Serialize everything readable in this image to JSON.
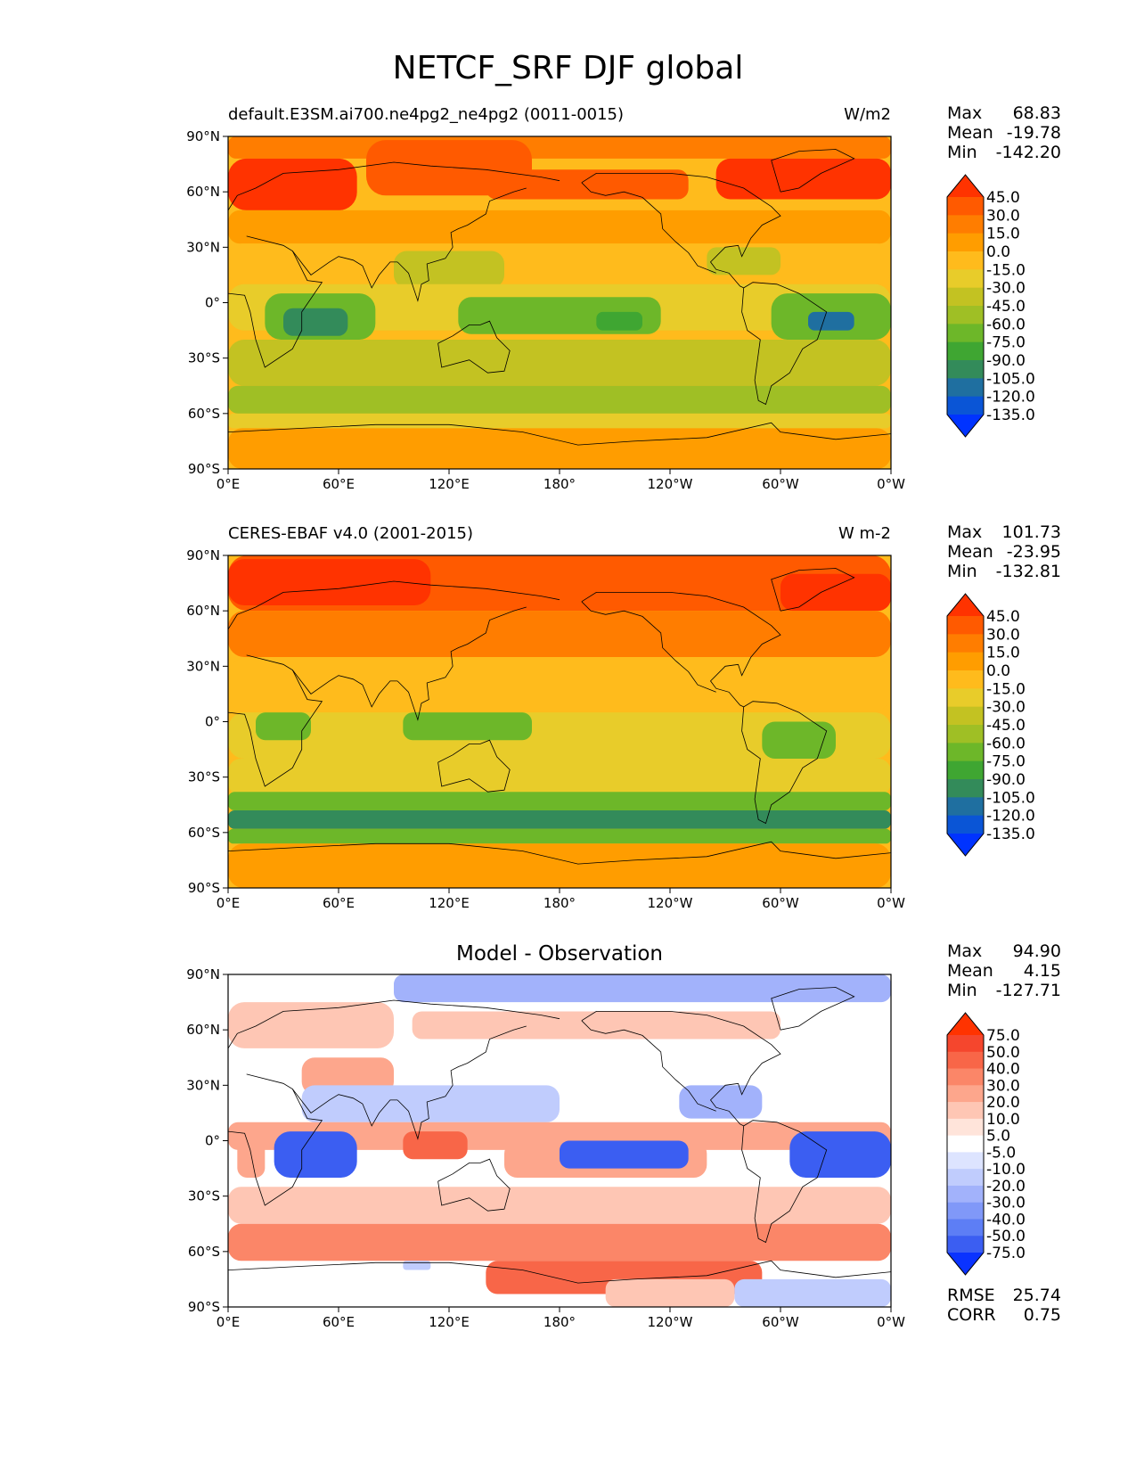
{
  "title": "NETCF_SRF DJF global",
  "chart_data": [
    {
      "type": "heatmap",
      "title_left": "default.E3SM.ai700.ne4pg2_ne4pg2 (0011-0015)",
      "title_right": "W/m2",
      "stats": {
        "max_label": "Max",
        "max": "68.83",
        "mean_label": "Mean",
        "mean": "-19.78",
        "min_label": "Min",
        "min": "-142.20"
      },
      "x_ticks": [
        "0°E",
        "60°E",
        "120°E",
        "180°",
        "120°W",
        "60°W",
        "0°W"
      ],
      "y_ticks": [
        "90°N",
        "60°N",
        "30°N",
        "0°",
        "30°S",
        "60°S",
        "90°S"
      ],
      "x_range": [
        0,
        360
      ],
      "y_range": [
        -90,
        90
      ],
      "colorbar_labels": [
        "45.0",
        "30.0",
        "15.0",
        "0.0",
        "-15.0",
        "-30.0",
        "-45.0",
        "-60.0",
        "-75.0",
        "-90.0",
        "-105.0",
        "-120.0",
        "-135.0"
      ],
      "colorbar_colors": [
        "#ff3300",
        "#ff5a00",
        "#ff7d00",
        "#ff9d00",
        "#ffbb1c",
        "#e8cc2a",
        "#c3c222",
        "#9fbf25",
        "#6db729",
        "#3fa632",
        "#338b5a",
        "#1f6fa0",
        "#0a55d6",
        "#0033ff"
      ],
      "regions": [
        {
          "lon": 0,
          "lat": 90,
          "w": 360,
          "h": 12,
          "v": 20
        },
        {
          "lon": 0,
          "lat": 78,
          "w": 70,
          "h": 28,
          "v": 48
        },
        {
          "lon": 75,
          "lat": 88,
          "w": 90,
          "h": 30,
          "v": 30
        },
        {
          "lon": 140,
          "lat": 72,
          "w": 110,
          "h": 16,
          "v": 42
        },
        {
          "lon": 265,
          "lat": 78,
          "w": 95,
          "h": 22,
          "v": 45
        },
        {
          "lon": 0,
          "lat": 50,
          "w": 360,
          "h": 18,
          "v": 10
        },
        {
          "lon": 0,
          "lat": 32,
          "w": 360,
          "h": 22,
          "v": -12
        },
        {
          "lon": 90,
          "lat": 28,
          "w": 60,
          "h": 20,
          "v": -35
        },
        {
          "lon": 260,
          "lat": 30,
          "w": 40,
          "h": 15,
          "v": -38
        },
        {
          "lon": 0,
          "lat": 10,
          "w": 360,
          "h": 25,
          "v": -28
        },
        {
          "lon": 20,
          "lat": 5,
          "w": 60,
          "h": 25,
          "v": -70
        },
        {
          "lon": 30,
          "lat": -3,
          "w": 35,
          "h": 15,
          "v": -95
        },
        {
          "lon": 125,
          "lat": 3,
          "w": 110,
          "h": 20,
          "v": -65
        },
        {
          "lon": 200,
          "lat": -5,
          "w": 25,
          "h": 10,
          "v": -88
        },
        {
          "lon": 295,
          "lat": 5,
          "w": 65,
          "h": 25,
          "v": -75
        },
        {
          "lon": 315,
          "lat": -5,
          "w": 25,
          "h": 10,
          "v": -115
        },
        {
          "lon": 0,
          "lat": -20,
          "w": 360,
          "h": 25,
          "v": -35
        },
        {
          "lon": 0,
          "lat": -45,
          "w": 360,
          "h": 15,
          "v": -50
        },
        {
          "lon": 0,
          "lat": -60,
          "w": 360,
          "h": 8,
          "v": -20
        },
        {
          "lon": 0,
          "lat": -68,
          "w": 360,
          "h": 22,
          "v": 5
        }
      ]
    },
    {
      "type": "heatmap",
      "title_left": "CERES-EBAF v4.0 (2001-2015)",
      "title_right": "W m-2",
      "stats": {
        "max_label": "Max",
        "max": "101.73",
        "mean_label": "Mean",
        "mean": "-23.95",
        "min_label": "Min",
        "min": "-132.81"
      },
      "x_ticks": [
        "0°E",
        "60°E",
        "120°E",
        "180°",
        "120°W",
        "60°W",
        "0°W"
      ],
      "y_ticks": [
        "90°N",
        "60°N",
        "30°N",
        "0°",
        "30°S",
        "60°S",
        "90°S"
      ],
      "x_range": [
        0,
        360
      ],
      "y_range": [
        -90,
        90
      ],
      "colorbar_labels": [
        "45.0",
        "30.0",
        "15.0",
        "0.0",
        "-15.0",
        "-30.0",
        "-45.0",
        "-60.0",
        "-75.0",
        "-90.0",
        "-105.0",
        "-120.0",
        "-135.0"
      ],
      "colorbar_colors": [
        "#ff3300",
        "#ff5a00",
        "#ff7d00",
        "#ff9d00",
        "#ffbb1c",
        "#e8cc2a",
        "#c3c222",
        "#9fbf25",
        "#6db729",
        "#3fa632",
        "#338b5a",
        "#1f6fa0",
        "#0a55d6",
        "#0033ff"
      ],
      "regions": [
        {
          "lon": 0,
          "lat": 90,
          "w": 360,
          "h": 30,
          "v": 30
        },
        {
          "lon": 0,
          "lat": 88,
          "w": 110,
          "h": 25,
          "v": 48
        },
        {
          "lon": 300,
          "lat": 80,
          "w": 60,
          "h": 20,
          "v": 48
        },
        {
          "lon": 0,
          "lat": 60,
          "w": 360,
          "h": 25,
          "v": 18
        },
        {
          "lon": 0,
          "lat": 35,
          "w": 360,
          "h": 30,
          "v": -5
        },
        {
          "lon": 0,
          "lat": 5,
          "w": 360,
          "h": 25,
          "v": -30
        },
        {
          "lon": 15,
          "lat": 5,
          "w": 30,
          "h": 15,
          "v": -65
        },
        {
          "lon": 95,
          "lat": 5,
          "w": 70,
          "h": 15,
          "v": -62
        },
        {
          "lon": 290,
          "lat": 0,
          "w": 40,
          "h": 20,
          "v": -70
        },
        {
          "lon": 0,
          "lat": -20,
          "w": 360,
          "h": 20,
          "v": -30
        },
        {
          "lon": 0,
          "lat": -38,
          "w": 360,
          "h": 10,
          "v": -72
        },
        {
          "lon": 0,
          "lat": -48,
          "w": 360,
          "h": 10,
          "v": -92
        },
        {
          "lon": 0,
          "lat": -58,
          "w": 360,
          "h": 8,
          "v": -65
        },
        {
          "lon": 0,
          "lat": -66,
          "w": 360,
          "h": 24,
          "v": 8
        }
      ]
    },
    {
      "type": "heatmap",
      "title_center": "Model - Observation",
      "stats": {
        "max_label": "Max",
        "max": "94.90",
        "mean_label": "Mean",
        "mean": "4.15",
        "min_label": "Min",
        "min": "-127.71"
      },
      "footer": {
        "rmse_label": "RMSE",
        "rmse": "25.74",
        "corr_label": "CORR",
        "corr": "0.75"
      },
      "x_ticks": [
        "0°E",
        "60°E",
        "120°E",
        "180°",
        "120°W",
        "60°W",
        "0°W"
      ],
      "y_ticks": [
        "90°N",
        "60°N",
        "30°N",
        "0°",
        "30°S",
        "60°S",
        "90°S"
      ],
      "x_range": [
        0,
        360
      ],
      "y_range": [
        -90,
        90
      ],
      "colorbar_labels": [
        "75.0",
        "50.0",
        "40.0",
        "30.0",
        "20.0",
        "10.0",
        "5.0",
        "-5.0",
        "-10.0",
        "-20.0",
        "-30.0",
        "-40.0",
        "-50.0",
        "-75.0"
      ],
      "colorbar_colors": [
        "#ff3300",
        "#f5462d",
        "#f86648",
        "#fb8668",
        "#fda68c",
        "#fec6b4",
        "#ffe4da",
        "#ffffff",
        "#dde4ff",
        "#c0ccfd",
        "#a2b2fb",
        "#8098f8",
        "#5d7ef5",
        "#3b5ef2",
        "#0a33ff"
      ],
      "regions": [
        {
          "lon": 90,
          "lat": 90,
          "w": 270,
          "h": 15,
          "v": -22
        },
        {
          "lon": 0,
          "lat": 75,
          "w": 90,
          "h": 25,
          "v": 12
        },
        {
          "lon": 100,
          "lat": 70,
          "w": 200,
          "h": 15,
          "v": 18
        },
        {
          "lon": 40,
          "lat": 45,
          "w": 50,
          "h": 20,
          "v": 25
        },
        {
          "lon": 40,
          "lat": 30,
          "w": 140,
          "h": 20,
          "v": -20
        },
        {
          "lon": 245,
          "lat": 30,
          "w": 45,
          "h": 18,
          "v": -25
        },
        {
          "lon": 0,
          "lat": 10,
          "w": 360,
          "h": 15,
          "v": 25
        },
        {
          "lon": 5,
          "lat": 5,
          "w": 15,
          "h": 25,
          "v": 22
        },
        {
          "lon": 25,
          "lat": 5,
          "w": 45,
          "h": 25,
          "v": -55
        },
        {
          "lon": 95,
          "lat": 5,
          "w": 35,
          "h": 15,
          "v": 40
        },
        {
          "lon": 150,
          "lat": 0,
          "w": 110,
          "h": 20,
          "v": 20
        },
        {
          "lon": 180,
          "lat": 0,
          "w": 70,
          "h": 15,
          "v": -60
        },
        {
          "lon": 305,
          "lat": 5,
          "w": 55,
          "h": 25,
          "v": -60
        },
        {
          "lon": 0,
          "lat": -25,
          "w": 360,
          "h": 20,
          "v": 15
        },
        {
          "lon": 0,
          "lat": -45,
          "w": 360,
          "h": 20,
          "v": 35
        },
        {
          "lon": 95,
          "lat": -65,
          "w": 15,
          "h": 5,
          "v": -15
        },
        {
          "lon": 140,
          "lat": -65,
          "w": 150,
          "h": 18,
          "v": 40
        },
        {
          "lon": 275,
          "lat": -75,
          "w": 85,
          "h": 15,
          "v": -15
        },
        {
          "lon": 205,
          "lat": -75,
          "w": 70,
          "h": 15,
          "v": 12
        }
      ]
    }
  ]
}
